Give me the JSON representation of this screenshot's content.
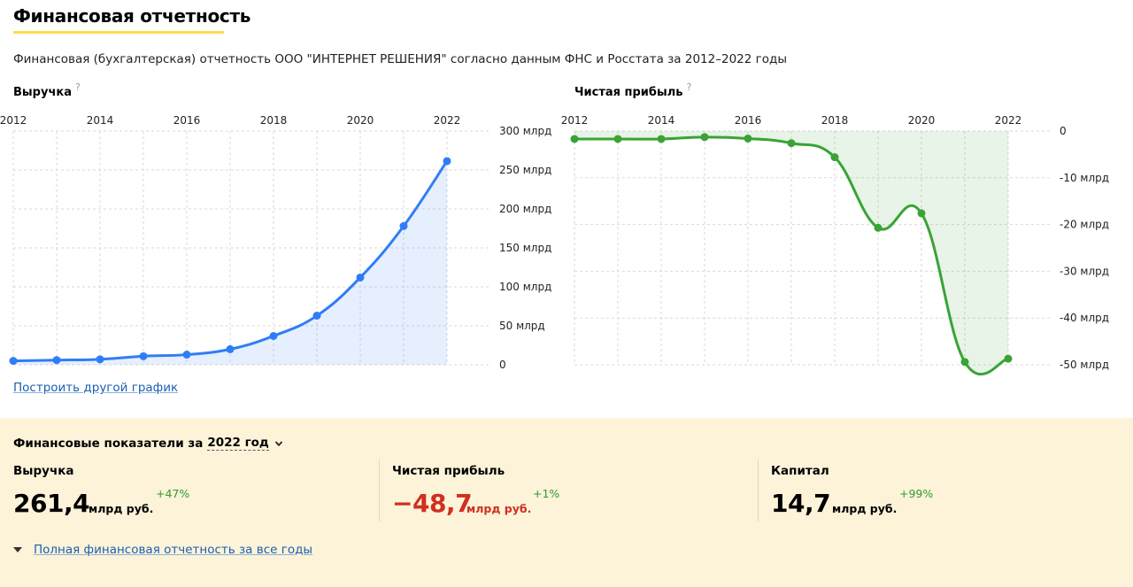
{
  "header": {
    "title": "Финансовая отчетность",
    "subtitle": "Финансовая (бухгалтерская) отчетность ООО \"ИНТЕРНЕТ РЕШЕНИЯ\" согласно данным ФНС и Росстата за 2012–2022 годы"
  },
  "revenue_chart": {
    "label": "Выручка",
    "help": "?"
  },
  "profit_chart": {
    "label": "Чистая прибыль",
    "help": "?"
  },
  "build_link": "Построить другой график",
  "chart_data": [
    {
      "type": "area",
      "title": "Выручка",
      "x_ticks": [
        "2012",
        "2014",
        "2016",
        "2018",
        "2020",
        "2022"
      ],
      "y_ticks": [
        "300 млрд",
        "250 млрд",
        "200 млрд",
        "150 млрд",
        "100 млрд",
        "50 млрд",
        "0"
      ],
      "ylim": [
        0,
        300
      ],
      "unit": "млрд",
      "x": [
        2012,
        2013,
        2014,
        2015,
        2016,
        2017,
        2018,
        2019,
        2020,
        2021,
        2022
      ],
      "values": [
        5,
        6,
        7,
        11,
        13,
        20,
        37,
        63,
        112,
        178,
        261.4
      ],
      "color": "#2f7df6",
      "grid": true
    },
    {
      "type": "area",
      "title": "Чистая прибыль",
      "x_ticks": [
        "2012",
        "2014",
        "2016",
        "2018",
        "2020",
        "2022"
      ],
      "y_ticks": [
        "0",
        "-10 млрд",
        "-20 млрд",
        "-30 млрд",
        "-40 млрд",
        "-50 млрд"
      ],
      "ylim": [
        -50,
        0
      ],
      "unit": "млрд",
      "x": [
        2012,
        2013,
        2014,
        2015,
        2016,
        2017,
        2018,
        2019,
        2020,
        2021,
        2022
      ],
      "values": [
        -1.7,
        -1.7,
        -1.7,
        -1.3,
        -1.6,
        -2.6,
        -5.6,
        -20.7,
        -17.6,
        -49.4,
        -48.7
      ],
      "color": "#3aa336",
      "grid": true
    }
  ],
  "panel": {
    "heading": "Финансовые показатели за",
    "year": "2022 год",
    "metrics": [
      {
        "label": "Выручка",
        "value": "261,4",
        "unit": "млрд руб.",
        "change": "+47%",
        "color": "#000000"
      },
      {
        "label": "Чистая прибыль",
        "value": "−48,7",
        "unit": "млрд руб.",
        "change": "+1%",
        "color": "#d0301f"
      },
      {
        "label": "Капитал",
        "value": "14,7",
        "unit": "млрд руб.",
        "change": "+99%",
        "color": "#000000"
      }
    ],
    "full_link": "Полная финансовая отчетность за все годы"
  }
}
